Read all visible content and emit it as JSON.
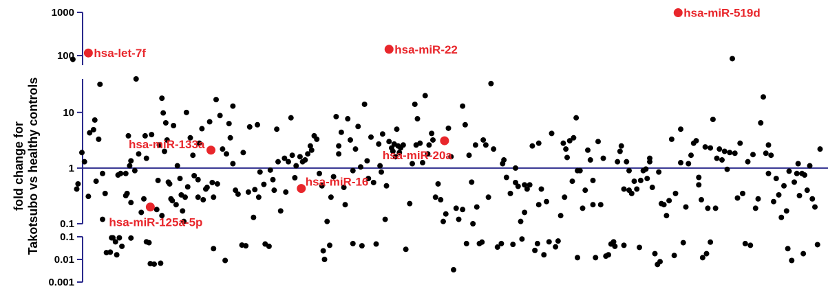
{
  "chart_data": {
    "type": "scatter",
    "title": "",
    "ylabel_line1": "fold change for",
    "ylabel_line2": "Takotsubo vs healthy controls",
    "xlabel": "",
    "y_scale": "log (broken axis)",
    "grid": false,
    "reference_line": 1,
    "y_segments": [
      {
        "range": [
          0.001,
          0.1
        ],
        "ticks": [
          "0.001",
          "0.01",
          "0.1"
        ]
      },
      {
        "range": [
          0.1,
          40
        ],
        "ticks": [
          "0.1",
          "1",
          "10"
        ]
      },
      {
        "range": [
          60,
          1000
        ],
        "ticks": [
          "100",
          "1000"
        ]
      }
    ],
    "colors": {
      "axis": "#2b2a8c",
      "points": "#000000",
      "highlight": "#e8262b"
    },
    "highlighted": [
      {
        "label": "hsa-let-7f",
        "x": 13,
        "y": 115
      },
      {
        "label": "hsa-miR-133a",
        "x": 108,
        "y": 2.1
      },
      {
        "label": "hsa-miR-125a-5p",
        "x": 61,
        "y": 0.2
      },
      {
        "label": "hsa-miR-16",
        "x": 178,
        "y": 0.43
      },
      {
        "label": "hsa-miR-22",
        "x": 246,
        "y": 140
      },
      {
        "label": "hsa-miR-20a",
        "x": 289,
        "y": 3.1
      },
      {
        "label": "hsa-miR-519d",
        "x": 470,
        "y": 980
      }
    ],
    "points": [
      [
        1,
        82
      ],
      [
        38,
        0.8
      ],
      [
        42,
        0.32
      ],
      [
        46,
        1.35
      ],
      [
        58,
        1.5
      ],
      [
        70,
        18
      ],
      [
        72,
        2.0
      ],
      [
        76,
        0.52
      ],
      [
        89,
        10
      ],
      [
        98,
        0.3
      ],
      [
        110,
        0.3
      ],
      [
        125,
        1.2
      ],
      [
        157,
        0.4
      ],
      [
        170,
        8
      ],
      [
        207,
        2.5
      ],
      [
        218,
        0.05
      ],
      [
        240,
        0.85
      ],
      [
        252,
        5
      ],
      [
        267,
        2.6
      ],
      [
        303,
        0.18
      ],
      [
        334,
        1.2
      ],
      [
        344,
        0.55
      ],
      [
        351,
        0.5
      ],
      [
        362,
        2.8
      ],
      [
        382,
        0.3
      ],
      [
        392,
        0.9
      ],
      [
        404,
        0.6
      ],
      [
        428,
        0.42
      ],
      [
        432,
        0.4
      ],
      [
        448,
        1.5
      ],
      [
        456,
        0.008
      ],
      [
        472,
        5
      ],
      [
        486,
        0.5
      ],
      [
        495,
        2.3
      ],
      [
        540,
        2.6
      ],
      [
        550,
        0.13
      ],
      [
        555,
        0.03
      ],
      [
        563,
        1.2
      ],
      [
        576,
        0.2
      ],
      [
        4,
        0.42
      ],
      [
        5,
        0.52
      ],
      [
        8,
        1.9
      ],
      [
        10,
        1.3
      ],
      [
        13,
        0.31
      ],
      [
        14,
        4.3
      ],
      [
        17,
        4.9
      ],
      [
        18,
        7.3
      ],
      [
        19,
        0.58
      ],
      [
        21,
        3.3
      ],
      [
        22,
        32
      ],
      [
        24,
        0.8
      ],
      [
        24,
        0.12
      ],
      [
        26,
        0.35
      ],
      [
        27,
        0.02
      ],
      [
        30,
        0.021
      ],
      [
        31,
        0.09
      ],
      [
        32,
        0.09
      ],
      [
        34,
        0.06
      ],
      [
        35,
        0.016
      ],
      [
        36,
        0.75
      ],
      [
        37,
        0.09
      ],
      [
        39,
        0.038
      ],
      [
        42,
        0.8
      ],
      [
        43,
        0.35
      ],
      [
        44,
        3.8
      ],
      [
        45,
        1.1
      ],
      [
        46,
        0.24
      ],
      [
        46,
        0.088
      ],
      [
        49,
        0.9
      ],
      [
        50,
        40
      ],
      [
        52,
        1.8
      ],
      [
        54,
        0.16
      ],
      [
        56,
        0.28
      ],
      [
        57,
        3.8
      ],
      [
        58,
        0.06
      ],
      [
        60,
        0.055
      ],
      [
        61,
        0.0065
      ],
      [
        62,
        4
      ],
      [
        64,
        0.0062
      ],
      [
        66,
        0.18
      ],
      [
        67,
        0.6
      ],
      [
        68,
        2.6
      ],
      [
        69,
        0.0068
      ],
      [
        70,
        0.14
      ],
      [
        71,
        9.8
      ],
      [
        73,
        6.5
      ],
      [
        74,
        3.2
      ],
      [
        75,
        0.56
      ],
      [
        77,
        0.28
      ],
      [
        78,
        0.26
      ],
      [
        79,
        5.8
      ],
      [
        81,
        0.22
      ],
      [
        82,
        1.1
      ],
      [
        84,
        0.65
      ],
      [
        85,
        0.33
      ],
      [
        86,
        0.17
      ],
      [
        87,
        0.11
      ],
      [
        88,
        0.3
      ],
      [
        90,
        0.46
      ],
      [
        92,
        3.5
      ],
      [
        94,
        1.7
      ],
      [
        95,
        0.73
      ],
      [
        98,
        0.62
      ],
      [
        99,
        2.8
      ],
      [
        101,
        5.1
      ],
      [
        102,
        0.27
      ],
      [
        104,
        0.42
      ],
      [
        105,
        0.45
      ],
      [
        107,
        6.8
      ],
      [
        109,
        0.55
      ],
      [
        110,
        0.03
      ],
      [
        112,
        17
      ],
      [
        113,
        0.52
      ],
      [
        115,
        8.8
      ],
      [
        117,
        2.2
      ],
      [
        119,
        0.009
      ],
      [
        120,
        1.8
      ],
      [
        122,
        6.3
      ],
      [
        123,
        3.5
      ],
      [
        125,
        13
      ],
      [
        127,
        0.4
      ],
      [
        129,
        0.34
      ],
      [
        132,
        0.043
      ],
      [
        133,
        1.9
      ],
      [
        135,
        0.04
      ],
      [
        137,
        0.37
      ],
      [
        138,
        5.5
      ],
      [
        141,
        0.13
      ],
      [
        142,
        0.41
      ],
      [
        144,
        6
      ],
      [
        145,
        0.3
      ],
      [
        146,
        0.85
      ],
      [
        149,
        0.51
      ],
      [
        150,
        0.048
      ],
      [
        153,
        0.038
      ],
      [
        154,
        0.92
      ],
      [
        156,
        0.62
      ],
      [
        159,
        5
      ],
      [
        160,
        1.3
      ],
      [
        162,
        0.17
      ],
      [
        165,
        1.5
      ],
      [
        166,
        0.37
      ],
      [
        168,
        1.3
      ],
      [
        171,
        1.7
      ],
      [
        173,
        0.67
      ],
      [
        174,
        1.1
      ],
      [
        177,
        1.6
      ],
      [
        179,
        1.3
      ],
      [
        181,
        1.4
      ],
      [
        183,
        1.8
      ],
      [
        185,
        2.5
      ],
      [
        186,
        2.1
      ],
      [
        188,
        3.8
      ],
      [
        190,
        3.3
      ],
      [
        192,
        0.8
      ],
      [
        194,
        0.48
      ],
      [
        195,
        0.024
      ],
      [
        196,
        0.01
      ],
      [
        198,
        0.11
      ],
      [
        200,
        0.042
      ],
      [
        201,
        0.3
      ],
      [
        203,
        0.7
      ],
      [
        205,
        8.4
      ],
      [
        207,
        1.8
      ],
      [
        209,
        4.4
      ],
      [
        211,
        0.45
      ],
      [
        212,
        0.22
      ],
      [
        214,
        7.7
      ],
      [
        216,
        3.2
      ],
      [
        218,
        0.9
      ],
      [
        220,
        2.2
      ],
      [
        222,
        5.6
      ],
      [
        224,
        1.05
      ],
      [
        225,
        0.04
      ],
      [
        227,
        14
      ],
      [
        229,
        1.35
      ],
      [
        230,
        0.65
      ],
      [
        232,
        3.6
      ],
      [
        234,
        0.55
      ],
      [
        236,
        0.048
      ],
      [
        238,
        2.7
      ],
      [
        239,
        1.1
      ],
      [
        241,
        4.1
      ],
      [
        243,
        0.12
      ],
      [
        244,
        0.48
      ],
      [
        246,
        3
      ],
      [
        248,
        2.3
      ],
      [
        249,
        2
      ],
      [
        250,
        2.7
      ],
      [
        251,
        1.6
      ],
      [
        253,
        2.5
      ],
      [
        254,
        1.9
      ],
      [
        255,
        2.3
      ],
      [
        257,
        2.6
      ],
      [
        259,
        0.028
      ],
      [
        262,
        0.23
      ],
      [
        264,
        1.2
      ],
      [
        266,
        14
      ],
      [
        268,
        7.7
      ],
      [
        270,
        2.8
      ],
      [
        272,
        1.25
      ],
      [
        274,
        20
      ],
      [
        276,
        1.8
      ],
      [
        277,
        2.6
      ],
      [
        279,
        4.2
      ],
      [
        280,
        3.2
      ],
      [
        282,
        0.3
      ],
      [
        284,
        0.52
      ],
      [
        286,
        0.27
      ],
      [
        288,
        0.11
      ],
      [
        290,
        0.15
      ],
      [
        292,
        5.2
      ],
      [
        294,
        1.6
      ],
      [
        296,
        0.0035
      ],
      [
        298,
        0.19
      ],
      [
        300,
        0.12
      ],
      [
        303,
        13
      ],
      [
        305,
        6
      ],
      [
        306,
        0.05
      ],
      [
        308,
        1.7
      ],
      [
        310,
        0.56
      ],
      [
        311,
        0.1
      ],
      [
        313,
        2.6
      ],
      [
        314,
        0.2
      ],
      [
        316,
        0.05
      ],
      [
        318,
        0.058
      ],
      [
        319,
        3.2
      ],
      [
        321,
        2.6
      ],
      [
        323,
        0.3
      ],
      [
        325,
        33
      ],
      [
        327,
        2.2
      ],
      [
        330,
        0.035
      ],
      [
        333,
        0.05
      ],
      [
        335,
        1.4
      ],
      [
        337,
        0.68
      ],
      [
        340,
        0.35
      ],
      [
        342,
        0.046
      ],
      [
        344,
        1
      ],
      [
        346,
        0.47
      ],
      [
        348,
        0.11
      ],
      [
        349,
        0.08
      ],
      [
        351,
        0.16
      ],
      [
        353,
        0.42
      ],
      [
        355,
        0.5
      ],
      [
        357,
        2.5
      ],
      [
        359,
        0.025
      ],
      [
        361,
        0.05
      ],
      [
        362,
        0.22
      ],
      [
        364,
        0.42
      ],
      [
        366,
        0.016
      ],
      [
        368,
        0.25
      ],
      [
        370,
        0.06
      ],
      [
        372,
        4.2
      ],
      [
        375,
        0.036
      ],
      [
        377,
        0.065
      ],
      [
        379,
        0.14
      ],
      [
        381,
        2.8
      ],
      [
        383,
        2.2
      ],
      [
        384,
        1.55
      ],
      [
        386,
        3.1
      ],
      [
        388,
        0.58
      ],
      [
        389,
        3.5
      ],
      [
        391,
        8
      ],
      [
        392,
        0.012
      ],
      [
        394,
        0.9
      ],
      [
        396,
        0.19
      ],
      [
        398,
        0.4
      ],
      [
        400,
        2.1
      ],
      [
        402,
        1.4
      ],
      [
        404,
        0.22
      ],
      [
        406,
        0.012
      ],
      [
        408,
        3
      ],
      [
        410,
        0.22
      ],
      [
        412,
        1.5
      ],
      [
        414,
        0.014
      ],
      [
        416,
        0.016
      ],
      [
        418,
        0.048
      ],
      [
        420,
        0.06
      ],
      [
        421,
        0.038
      ],
      [
        423,
        1.3
      ],
      [
        425,
        2
      ],
      [
        426,
        2.5
      ],
      [
        428,
        0.042
      ],
      [
        430,
        1.3
      ],
      [
        432,
        0.9
      ],
      [
        434,
        0.35
      ],
      [
        436,
        0.58
      ],
      [
        438,
        0.42
      ],
      [
        440,
        0.034
      ],
      [
        441,
        0.6
      ],
      [
        443,
        0.9
      ],
      [
        445,
        0.96
      ],
      [
        446,
        0.65
      ],
      [
        448,
        1.3
      ],
      [
        450,
        0.45
      ],
      [
        452,
        0.018
      ],
      [
        454,
        0.006
      ],
      [
        455,
        0.85
      ],
      [
        457,
        0.23
      ],
      [
        459,
        0.22
      ],
      [
        461,
        0.14
      ],
      [
        463,
        0.26
      ],
      [
        465,
        3.3
      ],
      [
        467,
        0.015
      ],
      [
        468,
        0.35
      ],
      [
        472,
        1.25
      ],
      [
        474,
        0.055
      ],
      [
        476,
        0.2
      ],
      [
        478,
        1.2
      ],
      [
        480,
        1.7
      ],
      [
        482,
        2.8
      ],
      [
        484,
        3.1
      ],
      [
        486,
        0.68
      ],
      [
        488,
        0.27
      ],
      [
        489,
        0.012
      ],
      [
        491,
        2.4
      ],
      [
        492,
        0.018
      ],
      [
        493,
        0.19
      ],
      [
        495,
        0.058
      ],
      [
        497,
        7.5
      ],
      [
        499,
        0.19
      ],
      [
        500,
        1.5
      ],
      [
        502,
        2.2
      ],
      [
        504,
        1.4
      ],
      [
        506,
        2
      ],
      [
        508,
        0.95
      ],
      [
        510,
        1.9
      ],
      [
        512,
        85
      ],
      [
        514,
        1.85
      ],
      [
        516,
        0.29
      ],
      [
        518,
        2.8
      ],
      [
        520,
        0.35
      ],
      [
        522,
        0.05
      ],
      [
        524,
        1.3
      ],
      [
        526,
        0.042
      ],
      [
        528,
        1.75
      ],
      [
        530,
        0.19
      ],
      [
        532,
        0.28
      ],
      [
        534,
        6.5
      ],
      [
        536,
        19
      ],
      [
        538,
        1.85
      ],
      [
        540,
        0.8
      ],
      [
        542,
        1.7
      ],
      [
        544,
        0.25
      ],
      [
        546,
        0.65
      ],
      [
        548,
        0.33
      ],
      [
        552,
        0.48
      ],
      [
        554,
        0.17
      ],
      [
        556,
        0.88
      ],
      [
        558,
        0.009
      ],
      [
        560,
        0.56
      ],
      [
        562,
        0.8
      ],
      [
        564,
        0.32
      ],
      [
        566,
        0.8
      ],
      [
        567,
        0.018
      ],
      [
        568,
        0.75
      ],
      [
        570,
        0.4
      ],
      [
        572,
        1.1
      ],
      [
        574,
        0.28
      ],
      [
        578,
        0.045
      ],
      [
        580,
        2.2
      ]
    ]
  }
}
